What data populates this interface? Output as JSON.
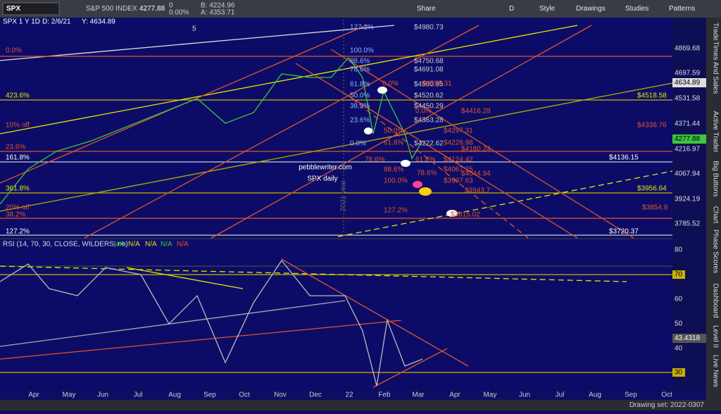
{
  "toolbar": {
    "symbol": "SPX",
    "name": "S&P 500 INDEX",
    "price": "4277.88",
    "change": "0",
    "change_pct": "0.00%",
    "bid": "B: 4224.96",
    "ask": "A: 4353.71",
    "buttons": [
      "Share",
      "D",
      "Style",
      "Drawings",
      "Studies",
      "Patterns"
    ]
  },
  "chart": {
    "header": [
      "SPX 1 Y 1D",
      "D: 2/6/21",
      "Y: 4634.89"
    ],
    "watermark": [
      "pebblewriter.com",
      "SPX daily",
      "5",
      "2021 year"
    ],
    "price_axis": [
      "4869.68",
      "4697.59",
      "4531.58",
      "4371.44",
      "4216.97",
      "4067.94",
      "3924.19",
      "3785.52"
    ],
    "price_tags": [
      "4634.89",
      "4277.88"
    ],
    "left_labels": [
      "0.0%",
      "423.6%",
      "10% off",
      "23.6%",
      "161.8%",
      "361.8%",
      "20% off",
      "38.2%",
      "127.2%"
    ],
    "fib_labels": [
      "127.2%",
      "100.0%",
      "88.6%",
      "78.6%",
      "61.8%",
      "50.0%",
      "38.2%",
      "23.6%",
      "0.0%"
    ],
    "fib_prices": [
      "$4980.73",
      "$4750.68",
      "$4691.08",
      "$4590.95",
      "$4520.62",
      "$4450.29",
      "$4363.28",
      "$4222.62"
    ],
    "red_fib_labels": [
      "0.0%",
      "0.0%",
      "50.0%",
      "61.8%",
      "78.6%",
      "61.8%",
      "88.6%",
      "100.0%",
      "78.6%",
      "127.2%"
    ],
    "red_prices": [
      "$4595.31",
      "$4416.28",
      "$4297.31",
      "$4226.98",
      "$4180.24",
      "$4124.42",
      "$4067.25",
      "$4044.94",
      "$3997.63",
      "$3943.7",
      "$3815.02",
      "$4336.76",
      "$3854.9"
    ],
    "right_prices": [
      "$4518.58",
      "$4136.15",
      "$3956.64",
      "$3720.37"
    ]
  },
  "rsi": {
    "header": "RSI (14, 70, 30, CLOSE, WILDERS, no)",
    "na": [
      "N/A",
      "N/A",
      "N/A",
      "N/A",
      "N/A"
    ],
    "axis": [
      "80",
      "70",
      "60",
      "50",
      "40",
      "30"
    ],
    "tag": "43.4318"
  },
  "x_axis": [
    "Apr",
    "May",
    "Jun",
    "Jul",
    "Aug",
    "Sep",
    "Oct",
    "Nov",
    "Dec",
    "22",
    "Feb",
    "Mar",
    "Apr",
    "May",
    "Jun",
    "Jul",
    "Aug",
    "Sep",
    "Oct"
  ],
  "footer": {
    "drawing_set": "Drawing set: 2022-0307"
  },
  "sidebar": [
    "Trade",
    "Times And Sales",
    "Active Trader",
    "Big Buttons",
    "Chart",
    "Phase Scores",
    "Dashboard",
    "Level II",
    "Live News"
  ]
}
